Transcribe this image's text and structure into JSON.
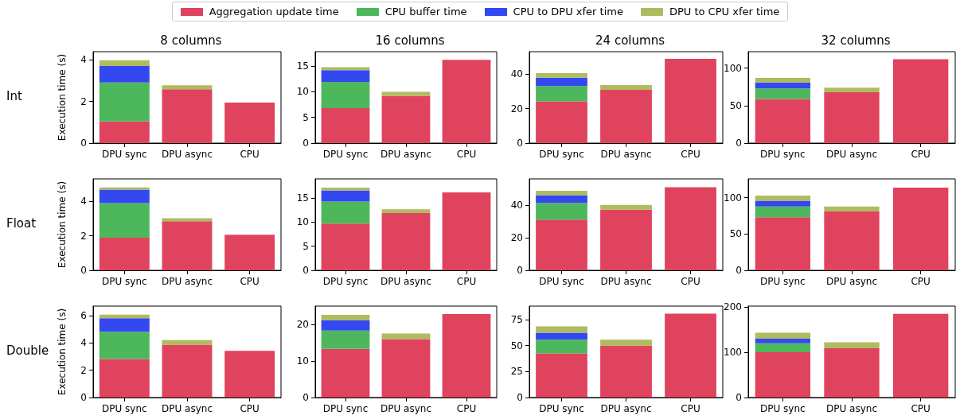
{
  "chart_data": [
    {
      "type": "bar",
      "title": "8 columns",
      "ylabel": "Execution time (s)",
      "annotations": [
        "Int"
      ],
      "legend": "top",
      "stacked": true,
      "categories": [
        "DPU sync",
        "DPU async",
        "CPU"
      ],
      "ylim": [
        0,
        4.4
      ],
      "yticks": [
        0,
        2,
        4
      ],
      "series": [
        {
          "name": "Aggregation update time",
          "color": "#e0435e",
          "values": [
            1.04,
            2.59,
            1.95
          ]
        },
        {
          "name": "CPU buffer time",
          "color": "#4db85b",
          "values": [
            1.88,
            null,
            null
          ]
        },
        {
          "name": "CPU to DPU xfer time",
          "color": "#3448f2",
          "values": [
            0.79,
            null,
            null
          ]
        },
        {
          "name": "DPU to CPU xfer time",
          "color": "#afbb5f",
          "values": [
            0.28,
            0.19,
            null
          ]
        }
      ]
    },
    {
      "type": "bar",
      "title": "16 columns",
      "stacked": true,
      "categories": [
        "DPU sync",
        "DPU async",
        "CPU"
      ],
      "ylim": [
        0,
        17.8
      ],
      "yticks": [
        0,
        5,
        10,
        15
      ],
      "series": [
        {
          "color": "#e0435e",
          "values": [
            6.8,
            9.2,
            16.2
          ]
        },
        {
          "color": "#4db85b",
          "values": [
            5.1,
            null,
            null
          ]
        },
        {
          "color": "#3448f2",
          "values": [
            2.3,
            null,
            null
          ]
        },
        {
          "color": "#afbb5f",
          "values": [
            0.6,
            0.8,
            null
          ]
        }
      ]
    },
    {
      "type": "bar",
      "title": "24 columns",
      "stacked": true,
      "categories": [
        "DPU sync",
        "DPU async",
        "CPU"
      ],
      "ylim": [
        0,
        53
      ],
      "yticks": [
        0,
        20,
        40
      ],
      "series": [
        {
          "color": "#e0435e",
          "values": [
            24.2,
            30.9,
            48.8
          ]
        },
        {
          "color": "#4db85b",
          "values": [
            8.9,
            null,
            null
          ]
        },
        {
          "color": "#3448f2",
          "values": [
            4.8,
            null,
            null
          ]
        },
        {
          "color": "#afbb5f",
          "values": [
            2.6,
            2.7,
            null
          ]
        }
      ]
    },
    {
      "type": "bar",
      "title": "32 columns",
      "stacked": true,
      "categories": [
        "DPU sync",
        "DPU async",
        "CPU"
      ],
      "ylim": [
        0,
        122
      ],
      "yticks": [
        0,
        50,
        100
      ],
      "series": [
        {
          "color": "#e0435e",
          "values": [
            59,
            68,
            112
          ]
        },
        {
          "color": "#4db85b",
          "values": [
            14,
            null,
            null
          ]
        },
        {
          "color": "#3448f2",
          "values": [
            8,
            null,
            null
          ]
        },
        {
          "color": "#afbb5f",
          "values": [
            6,
            6,
            null
          ]
        }
      ]
    },
    {
      "type": "bar",
      "ylabel": "Execution time (s)",
      "annotations": [
        "Float"
      ],
      "stacked": true,
      "categories": [
        "DPU sync",
        "DPU async",
        "CPU"
      ],
      "ylim": [
        0,
        5.3
      ],
      "yticks": [
        0,
        2,
        4
      ],
      "series": [
        {
          "color": "#e0435e",
          "values": [
            1.89,
            2.85,
            2.06
          ]
        },
        {
          "color": "#4db85b",
          "values": [
            2.01,
            null,
            null
          ]
        },
        {
          "color": "#3448f2",
          "values": [
            0.78,
            null,
            null
          ]
        },
        {
          "color": "#afbb5f",
          "values": [
            0.13,
            0.17,
            null
          ]
        }
      ]
    },
    {
      "type": "bar",
      "stacked": true,
      "categories": [
        "DPU sync",
        "DPU async",
        "CPU"
      ],
      "ylim": [
        0,
        19
      ],
      "yticks": [
        0,
        5,
        10,
        15
      ],
      "series": [
        {
          "color": "#e0435e",
          "values": [
            9.7,
            11.9,
            16.2
          ]
        },
        {
          "color": "#4db85b",
          "values": [
            4.6,
            null,
            null
          ]
        },
        {
          "color": "#3448f2",
          "values": [
            2.3,
            null,
            null
          ]
        },
        {
          "color": "#afbb5f",
          "values": [
            0.6,
            0.8,
            null
          ]
        }
      ]
    },
    {
      "type": "bar",
      "stacked": true,
      "categories": [
        "DPU sync",
        "DPU async",
        "CPU"
      ],
      "ylim": [
        0,
        56
      ],
      "yticks": [
        0,
        20,
        40
      ],
      "series": [
        {
          "color": "#e0435e",
          "values": [
            31.1,
            37.1,
            50.9
          ]
        },
        {
          "color": "#4db85b",
          "values": [
            10.2,
            null,
            null
          ]
        },
        {
          "color": "#3448f2",
          "values": [
            4.7,
            null,
            null
          ]
        },
        {
          "color": "#afbb5f",
          "values": [
            2.7,
            2.9,
            null
          ]
        }
      ]
    },
    {
      "type": "bar",
      "stacked": true,
      "categories": [
        "DPU sync",
        "DPU async",
        "CPU"
      ],
      "ylim": [
        0,
        126
      ],
      "yticks": [
        0,
        50,
        100
      ],
      "series": [
        {
          "color": "#e0435e",
          "values": [
            73,
            81,
            114
          ]
        },
        {
          "color": "#4db85b",
          "values": [
            15,
            null,
            null
          ]
        },
        {
          "color": "#3448f2",
          "values": [
            8,
            null,
            null
          ]
        },
        {
          "color": "#afbb5f",
          "values": [
            7,
            7,
            null
          ]
        }
      ]
    },
    {
      "type": "bar",
      "ylabel": "Execution time (s)",
      "annotations": [
        "Double"
      ],
      "stacked": true,
      "categories": [
        "DPU sync",
        "DPU async",
        "CPU"
      ],
      "ylim": [
        0,
        6.7
      ],
      "yticks": [
        0,
        2,
        4,
        6
      ],
      "series": [
        {
          "color": "#e0435e",
          "values": [
            2.82,
            3.87,
            3.43
          ]
        },
        {
          "color": "#4db85b",
          "values": [
            2.0,
            null,
            null
          ]
        },
        {
          "color": "#3448f2",
          "values": [
            0.99,
            null,
            null
          ]
        },
        {
          "color": "#afbb5f",
          "values": [
            0.27,
            0.34,
            null
          ]
        }
      ]
    },
    {
      "type": "bar",
      "stacked": true,
      "categories": [
        "DPU sync",
        "DPU async",
        "CPU"
      ],
      "ylim": [
        0,
        25
      ],
      "yticks": [
        0,
        10,
        20
      ],
      "series": [
        {
          "color": "#e0435e",
          "values": [
            13.3,
            16.0,
            22.8
          ]
        },
        {
          "color": "#4db85b",
          "values": [
            5.0,
            null,
            null
          ]
        },
        {
          "color": "#3448f2",
          "values": [
            2.8,
            null,
            null
          ]
        },
        {
          "color": "#afbb5f",
          "values": [
            1.5,
            1.5,
            null
          ]
        }
      ]
    },
    {
      "type": "bar",
      "stacked": true,
      "categories": [
        "DPU sync",
        "DPU async",
        "CPU"
      ],
      "ylim": [
        0,
        88
      ],
      "yticks": [
        0,
        25,
        50,
        75
      ],
      "series": [
        {
          "color": "#e0435e",
          "values": [
            42.5,
            50,
            80.7
          ]
        },
        {
          "color": "#4db85b",
          "values": [
            13.2,
            null,
            null
          ]
        },
        {
          "color": "#3448f2",
          "values": [
            6.7,
            null,
            null
          ]
        },
        {
          "color": "#afbb5f",
          "values": [
            6.0,
            5.7,
            null
          ]
        }
      ]
    },
    {
      "type": "bar",
      "stacked": true,
      "categories": [
        "DPU sync",
        "DPU async",
        "CPU"
      ],
      "ylim": [
        0,
        202
      ],
      "yticks": [
        0,
        100,
        200
      ],
      "series": [
        {
          "color": "#e0435e",
          "values": [
            100,
            109,
            185
          ]
        },
        {
          "color": "#4db85b",
          "values": [
            20,
            null,
            null
          ]
        },
        {
          "color": "#3448f2",
          "values": [
            10,
            null,
            null
          ]
        },
        {
          "color": "#afbb5f",
          "values": [
            13,
            13,
            null
          ]
        }
      ]
    }
  ]
}
